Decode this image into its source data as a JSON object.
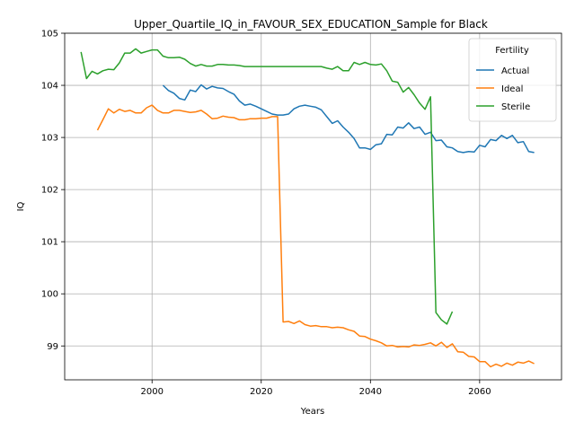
{
  "chart_data": {
    "type": "line",
    "title": "Upper_Quartile_IQ_in_FAVOUR_SEX_EDUCATION_Sample for Black",
    "xlabel": "Years",
    "ylabel": "IQ",
    "xlim": [
      1984,
      2075
    ],
    "ylim": [
      98.35,
      105.0
    ],
    "x_ticks": [
      2000,
      2020,
      2040,
      2060
    ],
    "y_ticks": [
      99,
      100,
      101,
      102,
      103,
      104,
      105
    ],
    "grid": true,
    "legend": {
      "title": "Fertility",
      "position": "top-right"
    },
    "series": [
      {
        "name": "Actual",
        "color": "#1f77b4",
        "x": [
          2002,
          2003,
          2004,
          2005,
          2006,
          2007,
          2008,
          2009,
          2010,
          2011,
          2012,
          2013,
          2014,
          2015,
          2016,
          2017,
          2018,
          2019,
          2020,
          2021,
          2022,
          2023,
          2024,
          2025,
          2026,
          2027,
          2028,
          2029,
          2030,
          2031,
          2032,
          2033,
          2034,
          2035,
          2036,
          2037,
          2038,
          2039,
          2040,
          2041,
          2042,
          2043,
          2044,
          2045,
          2046,
          2047,
          2048,
          2049,
          2050,
          2051,
          2052,
          2053,
          2054,
          2055,
          2056,
          2057,
          2058,
          2059,
          2060,
          2061,
          2062,
          2063,
          2064,
          2065,
          2066,
          2067,
          2068,
          2069,
          2070
        ],
        "values": [
          104.0,
          103.9,
          103.85,
          103.75,
          103.72,
          103.91,
          103.88,
          104.01,
          103.93,
          103.98,
          103.95,
          103.94,
          103.88,
          103.83,
          103.7,
          103.62,
          103.64,
          103.6,
          103.55,
          103.5,
          103.45,
          103.43,
          103.43,
          103.45,
          103.55,
          103.6,
          103.62,
          103.6,
          103.58,
          103.53,
          103.4,
          103.27,
          103.32,
          103.2,
          103.1,
          102.98,
          102.8,
          102.8,
          102.77,
          102.86,
          102.88,
          103.06,
          103.05,
          103.2,
          103.18,
          103.28,
          103.17,
          103.2,
          103.06,
          103.1,
          102.94,
          102.95,
          102.82,
          102.8,
          102.73,
          102.71,
          102.73,
          102.72,
          102.85,
          102.82,
          102.96,
          102.94,
          103.04,
          102.98,
          103.04,
          102.9,
          102.92,
          102.73,
          102.71
        ]
      },
      {
        "name": "Ideal",
        "color": "#ff7f0e",
        "x": [
          1990,
          1991,
          1992,
          1993,
          1994,
          1995,
          1996,
          1997,
          1998,
          1999,
          2000,
          2001,
          2002,
          2003,
          2004,
          2005,
          2006,
          2007,
          2008,
          2009,
          2010,
          2011,
          2012,
          2013,
          2014,
          2015,
          2016,
          2017,
          2018,
          2019,
          2020,
          2021,
          2022,
          2023,
          2024,
          2025,
          2026,
          2027,
          2028,
          2029,
          2030,
          2031,
          2032,
          2033,
          2034,
          2035,
          2036,
          2037,
          2038,
          2039,
          2040,
          2041,
          2042,
          2043,
          2044,
          2045,
          2046,
          2047,
          2048,
          2049,
          2050,
          2051,
          2052,
          2053,
          2054,
          2055,
          2056,
          2057,
          2058,
          2059,
          2060,
          2061,
          2062,
          2063,
          2064,
          2065,
          2066,
          2067,
          2068,
          2069,
          2070
        ],
        "values": [
          103.14,
          103.34,
          103.55,
          103.47,
          103.54,
          103.5,
          103.52,
          103.47,
          103.47,
          103.57,
          103.62,
          103.52,
          103.47,
          103.47,
          103.52,
          103.52,
          103.5,
          103.48,
          103.49,
          103.52,
          103.45,
          103.36,
          103.37,
          103.41,
          103.39,
          103.38,
          103.34,
          103.34,
          103.36,
          103.36,
          103.37,
          103.37,
          103.4,
          103.4,
          99.46,
          99.47,
          99.43,
          99.48,
          99.41,
          99.38,
          99.39,
          99.37,
          99.37,
          99.35,
          99.36,
          99.35,
          99.31,
          99.28,
          99.19,
          99.18,
          99.13,
          99.1,
          99.06,
          99.0,
          99.01,
          98.98,
          98.99,
          98.98,
          99.02,
          99.01,
          99.03,
          99.06,
          99.0,
          99.07,
          98.97,
          99.04,
          98.89,
          98.88,
          98.8,
          98.79,
          98.7,
          98.7,
          98.6,
          98.65,
          98.61,
          98.67,
          98.63,
          98.69,
          98.67,
          98.71,
          98.66
        ]
      },
      {
        "name": "Sterile",
        "color": "#2ca02c",
        "x": [
          1987,
          1988,
          1989,
          1990,
          1991,
          1992,
          1993,
          1994,
          1995,
          1996,
          1997,
          1998,
          1999,
          2000,
          2001,
          2002,
          2003,
          2004,
          2005,
          2006,
          2007,
          2008,
          2009,
          2010,
          2011,
          2012,
          2013,
          2014,
          2015,
          2016,
          2017,
          2018,
          2019,
          2020,
          2021,
          2022,
          2023,
          2024,
          2025,
          2026,
          2027,
          2028,
          2029,
          2030,
          2031,
          2032,
          2033,
          2034,
          2035,
          2036,
          2037,
          2038,
          2039,
          2040,
          2041,
          2042,
          2043,
          2044,
          2045,
          2046,
          2047,
          2048,
          2049,
          2050,
          2051,
          2052,
          2053,
          2054,
          2055
        ],
        "values": [
          104.64,
          104.13,
          104.27,
          104.22,
          104.28,
          104.31,
          104.3,
          104.43,
          104.62,
          104.62,
          104.7,
          104.62,
          104.65,
          104.68,
          104.68,
          104.56,
          104.53,
          104.53,
          104.54,
          104.5,
          104.42,
          104.37,
          104.4,
          104.37,
          104.37,
          104.4,
          104.4,
          104.39,
          104.39,
          104.38,
          104.36,
          104.36,
          104.36,
          104.36,
          104.36,
          104.36,
          104.36,
          104.36,
          104.36,
          104.36,
          104.36,
          104.36,
          104.36,
          104.36,
          104.36,
          104.33,
          104.31,
          104.36,
          104.28,
          104.28,
          104.44,
          104.4,
          104.44,
          104.4,
          104.39,
          104.41,
          104.28,
          104.08,
          104.06,
          103.87,
          103.96,
          103.82,
          103.66,
          103.54,
          103.78,
          99.64,
          99.5,
          99.42,
          99.66
        ]
      }
    ]
  }
}
